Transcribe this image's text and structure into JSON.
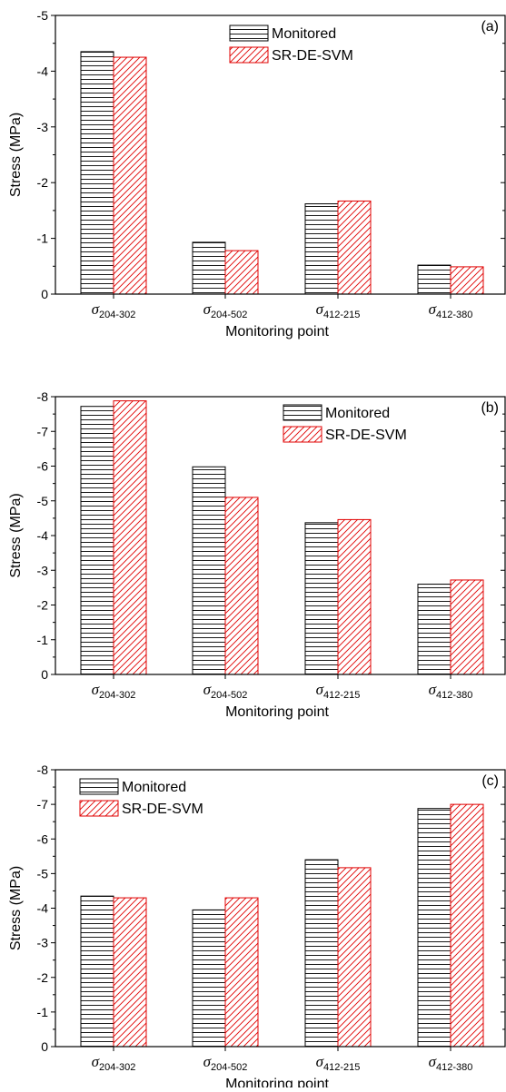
{
  "chart_data": [
    {
      "type": "bar",
      "panel_label": "(a)",
      "categories": [
        {
          "symbol": "σ",
          "sub": "204-302"
        },
        {
          "symbol": "σ",
          "sub": "204-502"
        },
        {
          "symbol": "σ",
          "sub": "412-215"
        },
        {
          "symbol": "σ",
          "sub": "412-380"
        }
      ],
      "series": [
        {
          "name": "Monitored",
          "values": [
            -4.35,
            -0.93,
            -1.62,
            -0.52
          ],
          "pattern": "horizontal-lines",
          "color": "#000000"
        },
        {
          "name": "SR-DE-SVM",
          "values": [
            -4.25,
            -0.78,
            -1.67,
            -0.49
          ],
          "pattern": "diagonal-lines",
          "color": "#e00000"
        }
      ],
      "xlabel": "Monitoring point",
      "ylabel": "Stress (MPa)",
      "ylim": [
        0,
        -5
      ],
      "yticks": [
        "0",
        "-1",
        "-2",
        "-3",
        "-4",
        "-5"
      ],
      "legend_position": "top-center",
      "grid": false
    },
    {
      "type": "bar",
      "panel_label": "(b)",
      "categories": [
        {
          "symbol": "σ",
          "sub": "204-302"
        },
        {
          "symbol": "σ",
          "sub": "204-502"
        },
        {
          "symbol": "σ",
          "sub": "412-215"
        },
        {
          "symbol": "σ",
          "sub": "412-380"
        }
      ],
      "series": [
        {
          "name": "Monitored",
          "values": [
            -7.72,
            -5.98,
            -4.37,
            -2.6
          ],
          "pattern": "horizontal-lines",
          "color": "#000000"
        },
        {
          "name": "SR-DE-SVM",
          "values": [
            -7.88,
            -5.1,
            -4.46,
            -2.72
          ],
          "pattern": "diagonal-lines",
          "color": "#e00000"
        }
      ],
      "xlabel": "Monitoring point",
      "ylabel": "Stress (MPa)",
      "ylim": [
        0,
        -8
      ],
      "yticks": [
        "0",
        "-1",
        "-2",
        "-3",
        "-4",
        "-5",
        "-6",
        "-7",
        "-8"
      ],
      "legend_position": "top-right",
      "grid": false
    },
    {
      "type": "bar",
      "panel_label": "(c)",
      "categories": [
        {
          "symbol": "σ",
          "sub": "204-302"
        },
        {
          "symbol": "σ",
          "sub": "204-502"
        },
        {
          "symbol": "σ",
          "sub": "412-215"
        },
        {
          "symbol": "σ",
          "sub": "412-380"
        }
      ],
      "series": [
        {
          "name": "Monitored",
          "values": [
            -4.35,
            -3.95,
            -5.4,
            -6.88
          ],
          "pattern": "horizontal-lines",
          "color": "#000000"
        },
        {
          "name": "SR-DE-SVM",
          "values": [
            -4.3,
            -4.3,
            -5.17,
            -7.0
          ],
          "pattern": "diagonal-lines",
          "color": "#e00000"
        }
      ],
      "xlabel": "Monitoring point",
      "ylabel": "Stress (MPa)",
      "ylim": [
        0,
        -8
      ],
      "yticks": [
        "0",
        "-1",
        "-2",
        "-3",
        "-4",
        "-5",
        "-6",
        "-7",
        "-8"
      ],
      "legend_position": "top-left",
      "grid": false
    }
  ]
}
